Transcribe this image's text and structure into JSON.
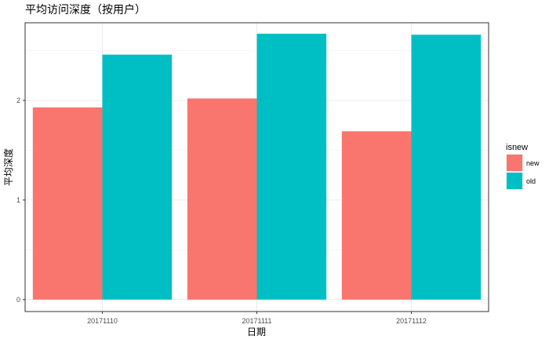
{
  "chart_data": {
    "type": "bar",
    "title": "平均访问深度（按用户）",
    "xlabel": "日期",
    "ylabel": "平均深度",
    "categories": [
      "20171110",
      "20171111",
      "20171112"
    ],
    "series": [
      {
        "name": "new",
        "values": [
          1.93,
          2.02,
          1.69
        ],
        "color": "#F8766D"
      },
      {
        "name": "old",
        "values": [
          2.46,
          2.67,
          2.66
        ],
        "color": "#00BFC4"
      }
    ],
    "yticks": [
      0,
      1,
      2
    ],
    "ylim": [
      -0.12,
      2.78
    ],
    "grid": true,
    "legend": {
      "title": "isnew",
      "placement": "right"
    }
  }
}
